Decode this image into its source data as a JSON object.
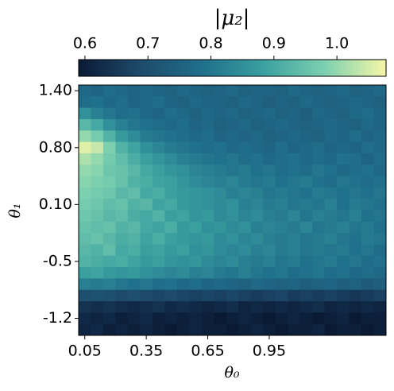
{
  "chart_data": {
    "type": "heatmap",
    "title": "|μ₂|",
    "xlabel": "θ₀",
    "ylabel": "θ₁",
    "x_categories": [
      "0.05",
      null,
      null,
      null,
      null,
      "0.35",
      null,
      null,
      null,
      null,
      "0.65",
      null,
      null,
      null,
      null,
      "0.95",
      null,
      null,
      null,
      null,
      null,
      null,
      null,
      null,
      null
    ],
    "y_categories": [
      "1.40",
      null,
      null,
      null,
      null,
      "0.80",
      null,
      null,
      null,
      null,
      "0.10",
      null,
      null,
      null,
      null,
      "-0.5",
      null,
      null,
      null,
      null,
      "-1.2",
      null
    ],
    "colormap": [
      "#0a1a35",
      "#1e4a6b",
      "#1f6f8b",
      "#3aa0a0",
      "#7cd0b0",
      "#f6f7a8"
    ],
    "clim": [
      0.59,
      1.078
    ],
    "cticks": [
      0.6,
      0.7,
      0.8,
      0.9,
      {
        "value": 1,
        "label": "1.0"
      }
    ],
    "values": [
      [
        0.77,
        0.76,
        0.78,
        0.77,
        0.76,
        0.77,
        0.76,
        0.75,
        0.77,
        0.76,
        0.75,
        0.76,
        0.77,
        0.75,
        0.76,
        0.76,
        0.75,
        0.77,
        0.76,
        0.75,
        0.76,
        0.77,
        0.75,
        0.76,
        0.77
      ],
      [
        0.78,
        0.79,
        0.77,
        0.78,
        0.76,
        0.77,
        0.78,
        0.76,
        0.75,
        0.77,
        0.76,
        0.76,
        0.75,
        0.77,
        0.76,
        0.74,
        0.76,
        0.75,
        0.77,
        0.76,
        0.75,
        0.76,
        0.77,
        0.76,
        0.75
      ],
      [
        0.85,
        0.82,
        0.8,
        0.78,
        0.79,
        0.77,
        0.76,
        0.78,
        0.77,
        0.75,
        0.77,
        0.76,
        0.77,
        0.75,
        0.76,
        0.77,
        0.75,
        0.76,
        0.74,
        0.77,
        0.76,
        0.75,
        0.77,
        0.78,
        0.76
      ],
      [
        0.93,
        0.9,
        0.85,
        0.82,
        0.8,
        0.79,
        0.78,
        0.77,
        0.78,
        0.76,
        0.77,
        0.75,
        0.76,
        0.77,
        0.75,
        0.76,
        0.77,
        0.76,
        0.75,
        0.76,
        0.77,
        0.76,
        0.75,
        0.77,
        0.76
      ],
      [
        1.0,
        0.97,
        0.92,
        0.87,
        0.84,
        0.81,
        0.8,
        0.79,
        0.78,
        0.77,
        0.78,
        0.76,
        0.77,
        0.76,
        0.77,
        0.75,
        0.76,
        0.77,
        0.76,
        0.75,
        0.77,
        0.76,
        0.78,
        0.76,
        0.77
      ],
      [
        1.06,
        1.04,
        0.98,
        0.92,
        0.89,
        0.85,
        0.83,
        0.81,
        0.8,
        0.79,
        0.78,
        0.79,
        0.77,
        0.78,
        0.77,
        0.76,
        0.78,
        0.76,
        0.77,
        0.78,
        0.76,
        0.77,
        0.76,
        0.78,
        0.77
      ],
      [
        1.02,
        1.0,
        0.97,
        0.94,
        0.91,
        0.88,
        0.86,
        0.84,
        0.82,
        0.81,
        0.8,
        0.79,
        0.8,
        0.78,
        0.79,
        0.77,
        0.78,
        0.79,
        0.77,
        0.78,
        0.77,
        0.79,
        0.78,
        0.76,
        0.78
      ],
      [
        1.0,
        0.99,
        0.96,
        0.95,
        0.93,
        0.9,
        0.88,
        0.86,
        0.85,
        0.83,
        0.82,
        0.81,
        0.8,
        0.81,
        0.79,
        0.8,
        0.78,
        0.79,
        0.78,
        0.8,
        0.79,
        0.77,
        0.78,
        0.79,
        0.77
      ],
      [
        0.99,
        0.98,
        0.97,
        0.95,
        0.92,
        0.91,
        0.89,
        0.88,
        0.86,
        0.84,
        0.83,
        0.82,
        0.83,
        0.81,
        0.8,
        0.81,
        0.79,
        0.8,
        0.81,
        0.79,
        0.78,
        0.8,
        0.79,
        0.78,
        0.79
      ],
      [
        0.98,
        0.97,
        0.96,
        0.93,
        0.94,
        0.9,
        0.91,
        0.88,
        0.87,
        0.86,
        0.85,
        0.84,
        0.82,
        0.83,
        0.82,
        0.8,
        0.81,
        0.8,
        0.79,
        0.81,
        0.8,
        0.79,
        0.8,
        0.79,
        0.8
      ],
      [
        0.97,
        0.96,
        0.94,
        0.95,
        0.92,
        0.93,
        0.89,
        0.9,
        0.87,
        0.86,
        0.85,
        0.84,
        0.85,
        0.82,
        0.83,
        0.81,
        0.82,
        0.8,
        0.81,
        0.8,
        0.82,
        0.79,
        0.81,
        0.8,
        0.79
      ],
      [
        0.96,
        0.95,
        0.93,
        0.94,
        0.91,
        0.9,
        0.92,
        0.88,
        0.89,
        0.86,
        0.87,
        0.84,
        0.85,
        0.83,
        0.84,
        0.82,
        0.81,
        0.83,
        0.8,
        0.82,
        0.81,
        0.8,
        0.82,
        0.79,
        0.8
      ],
      [
        0.95,
        0.94,
        0.95,
        0.92,
        0.93,
        0.9,
        0.89,
        0.91,
        0.87,
        0.88,
        0.85,
        0.86,
        0.84,
        0.85,
        0.82,
        0.83,
        0.82,
        0.81,
        0.83,
        0.8,
        0.81,
        0.82,
        0.8,
        0.81,
        0.79
      ],
      [
        0.94,
        0.95,
        0.93,
        0.91,
        0.92,
        0.89,
        0.91,
        0.88,
        0.87,
        0.86,
        0.87,
        0.84,
        0.85,
        0.83,
        0.84,
        0.82,
        0.81,
        0.82,
        0.8,
        0.81,
        0.82,
        0.8,
        0.79,
        0.81,
        0.8
      ],
      [
        0.93,
        0.92,
        0.94,
        0.9,
        0.91,
        0.88,
        0.89,
        0.87,
        0.88,
        0.85,
        0.86,
        0.84,
        0.83,
        0.84,
        0.82,
        0.83,
        0.81,
        0.82,
        0.8,
        0.81,
        0.8,
        0.81,
        0.79,
        0.8,
        0.78
      ],
      [
        0.92,
        0.91,
        0.9,
        0.91,
        0.89,
        0.87,
        0.88,
        0.86,
        0.85,
        0.86,
        0.84,
        0.83,
        0.84,
        0.82,
        0.81,
        0.82,
        0.8,
        0.81,
        0.79,
        0.8,
        0.81,
        0.79,
        0.8,
        0.78,
        0.79
      ],
      [
        0.88,
        0.89,
        0.87,
        0.86,
        0.87,
        0.85,
        0.84,
        0.83,
        0.84,
        0.82,
        0.83,
        0.81,
        0.8,
        0.82,
        0.8,
        0.79,
        0.8,
        0.78,
        0.79,
        0.8,
        0.78,
        0.79,
        0.77,
        0.78,
        0.77
      ],
      [
        0.82,
        0.81,
        0.82,
        0.8,
        0.79,
        0.8,
        0.78,
        0.79,
        0.77,
        0.78,
        0.76,
        0.77,
        0.76,
        0.75,
        0.77,
        0.76,
        0.75,
        0.76,
        0.74,
        0.75,
        0.76,
        0.74,
        0.75,
        0.73,
        0.74
      ],
      [
        0.7,
        0.71,
        0.7,
        0.69,
        0.7,
        0.69,
        0.68,
        0.69,
        0.68,
        0.67,
        0.68,
        0.67,
        0.68,
        0.67,
        0.66,
        0.67,
        0.68,
        0.66,
        0.67,
        0.66,
        0.67,
        0.66,
        0.65,
        0.66,
        0.67
      ],
      [
        0.64,
        0.63,
        0.64,
        0.63,
        0.62,
        0.63,
        0.64,
        0.62,
        0.63,
        0.62,
        0.61,
        0.62,
        0.63,
        0.61,
        0.62,
        0.61,
        0.62,
        0.61,
        0.62,
        0.63,
        0.61,
        0.62,
        0.61,
        0.62,
        0.61
      ],
      [
        0.62,
        0.61,
        0.62,
        0.6,
        0.61,
        0.62,
        0.6,
        0.61,
        0.6,
        0.61,
        0.6,
        0.59,
        0.6,
        0.61,
        0.6,
        0.59,
        0.6,
        0.61,
        0.6,
        0.59,
        0.6,
        0.61,
        0.59,
        0.6,
        0.6
      ],
      [
        0.61,
        0.62,
        0.6,
        0.61,
        0.6,
        0.61,
        0.6,
        0.59,
        0.6,
        0.61,
        0.6,
        0.6,
        0.59,
        0.6,
        0.61,
        0.6,
        0.59,
        0.6,
        0.6,
        0.61,
        0.59,
        0.6,
        0.6,
        0.59,
        0.6
      ]
    ]
  }
}
